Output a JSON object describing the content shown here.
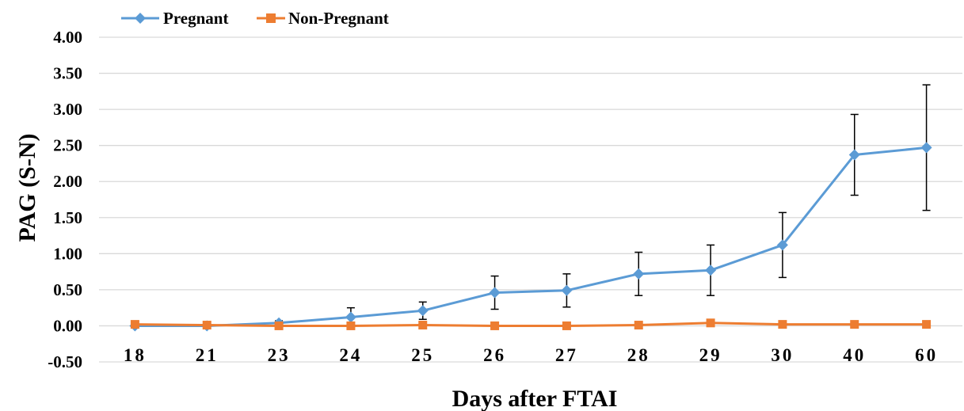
{
  "chart_data": {
    "type": "line",
    "xlabel": "Days after FTAI",
    "ylabel": "PAG (S-N)",
    "categories": [
      "18",
      "21",
      "23",
      "24",
      "25",
      "26",
      "27",
      "28",
      "29",
      "30",
      "40",
      "60"
    ],
    "y_ticks": [
      "-0.50",
      "0.00",
      "0.50",
      "1.00",
      "1.50",
      "2.00",
      "2.50",
      "3.00",
      "3.50",
      "4.00"
    ],
    "ylim": [
      -0.5,
      4.0
    ],
    "grid": true,
    "legend_position": "top-left",
    "series": [
      {
        "name": "Pregnant",
        "color": "#5b9bd5",
        "marker": "diamond",
        "values": [
          0.0,
          0.0,
          0.04,
          0.12,
          0.21,
          0.46,
          0.49,
          0.72,
          0.77,
          1.12,
          2.37,
          2.47
        ],
        "error": [
          0.0,
          0.0,
          0.03,
          0.13,
          0.12,
          0.23,
          0.23,
          0.3,
          0.35,
          0.45,
          0.56,
          0.87
        ]
      },
      {
        "name": "Non-Pregnant",
        "color": "#ed7d31",
        "marker": "square",
        "values": [
          0.02,
          0.01,
          0.0,
          0.0,
          0.01,
          0.0,
          0.0,
          0.01,
          0.04,
          0.02,
          0.02,
          0.02
        ],
        "error": []
      }
    ]
  }
}
